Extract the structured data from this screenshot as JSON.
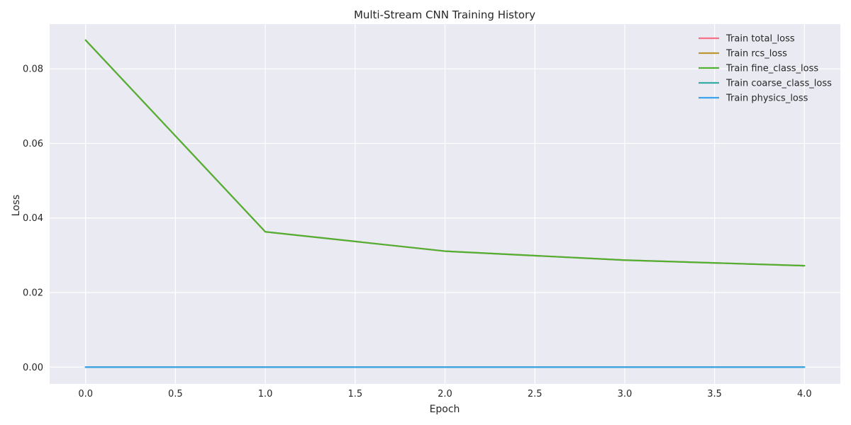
{
  "chart_data": {
    "type": "line",
    "title": "Multi-Stream CNN Training History",
    "xlabel": "Epoch",
    "ylabel": "Loss",
    "xlim": [
      -0.2,
      4.2
    ],
    "ylim": [
      -0.0045,
      0.092
    ],
    "xticks": [
      0.0,
      0.5,
      1.0,
      1.5,
      2.0,
      2.5,
      3.0,
      3.5,
      4.0
    ],
    "xtick_labels": [
      "0.0",
      "0.5",
      "1.0",
      "1.5",
      "2.0",
      "2.5",
      "3.0",
      "3.5",
      "4.0"
    ],
    "yticks": [
      0.0,
      0.02,
      0.04,
      0.06,
      0.08
    ],
    "ytick_labels": [
      "0.00",
      "0.02",
      "0.04",
      "0.06",
      "0.08"
    ],
    "grid": true,
    "legend_position": "top-right",
    "x": [
      0,
      1,
      2,
      3,
      4
    ],
    "series": [
      {
        "name": "Train total_loss",
        "color": "#f77189",
        "values": [
          0.0877,
          0.0363,
          0.0311,
          0.0287,
          0.0272
        ]
      },
      {
        "name": "Train rcs_loss",
        "color": "#bb9832",
        "values": [
          0.0,
          0.0,
          0.0,
          0.0,
          0.0
        ]
      },
      {
        "name": "Train fine_class_loss",
        "color": "#50b131",
        "values": [
          0.0877,
          0.0363,
          0.0311,
          0.0287,
          0.0272
        ]
      },
      {
        "name": "Train coarse_class_loss",
        "color": "#36ada4",
        "values": [
          0.0,
          0.0,
          0.0,
          0.0,
          0.0
        ]
      },
      {
        "name": "Train physics_loss",
        "color": "#3ba3ec",
        "values": [
          0.0,
          0.0,
          0.0,
          0.0,
          0.0
        ]
      }
    ]
  }
}
